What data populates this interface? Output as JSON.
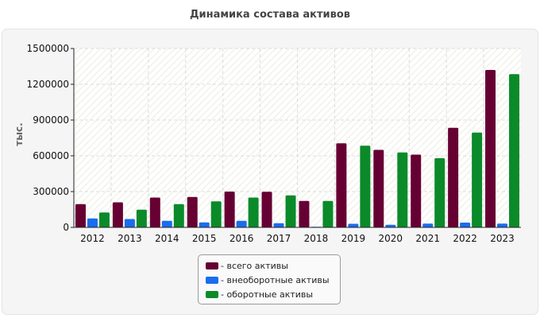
{
  "title": "Динамика состава активов",
  "chart_data": {
    "type": "bar",
    "title": "Динамика состава активов",
    "xlabel": "",
    "ylabel": "тыс.",
    "ylim": [
      0,
      1500000
    ],
    "yticks": [
      0,
      300000,
      600000,
      900000,
      1200000,
      1500000
    ],
    "grid": true,
    "legend_position": "bottom",
    "categories": [
      "2012",
      "2013",
      "2014",
      "2015",
      "2016",
      "2017",
      "2018",
      "2019",
      "2020",
      "2021",
      "2022",
      "2023"
    ],
    "series": [
      {
        "name": "- всего активы",
        "color": "#660033",
        "values": [
          195000,
          210000,
          250000,
          255000,
          300000,
          298000,
          222000,
          705000,
          650000,
          610000,
          835000,
          1320000
        ]
      },
      {
        "name": "- внеоборотные активы",
        "color": "#1a6cf0",
        "values": [
          75000,
          70000,
          55000,
          42000,
          55000,
          35000,
          5000,
          30000,
          22000,
          32000,
          40000,
          32000
        ]
      },
      {
        "name": "- оборотные активы",
        "color": "#0b8a2a",
        "values": [
          125000,
          148000,
          195000,
          218000,
          250000,
          268000,
          222000,
          685000,
          628000,
          580000,
          795000,
          1285000
        ]
      }
    ]
  }
}
